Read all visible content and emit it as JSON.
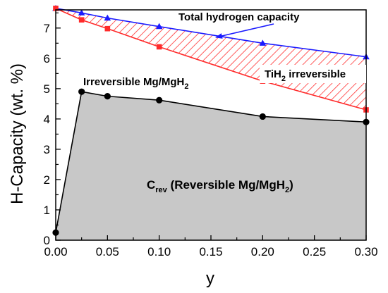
{
  "chart_data": {
    "type": "line",
    "title": "",
    "xlabel": "y",
    "ylabel": "H-Capacity (wt. %)",
    "xlim": [
      0.0,
      0.3
    ],
    "ylim": [
      0,
      7.6
    ],
    "x_ticks": [
      "0.00",
      "0.05",
      "0.10",
      "0.15",
      "0.20",
      "0.25",
      "0.30"
    ],
    "y_ticks": [
      "0",
      "1",
      "2",
      "3",
      "4",
      "5",
      "6",
      "7"
    ],
    "grid": false,
    "legend": "none",
    "series": [
      {
        "color": "#1a1aff",
        "marker": "triangle",
        "x": [
          0.0,
          0.025,
          0.05,
          0.1,
          0.2,
          0.3
        ],
        "y": [
          7.65,
          7.5,
          7.33,
          7.05,
          6.5,
          6.05
        ]
      },
      {
        "color": "#ff2a2a",
        "marker": "square",
        "x": [
          0.0,
          0.025,
          0.05,
          0.1,
          0.2,
          0.3
        ],
        "y": [
          7.65,
          7.27,
          6.98,
          6.38,
          5.25,
          4.3
        ]
      },
      {
        "color": "#000000",
        "marker": "circle",
        "x": [
          0.0,
          0.025,
          0.05,
          0.1,
          0.2,
          0.3
        ],
        "y": [
          0.25,
          4.9,
          4.75,
          4.62,
          4.08,
          3.9
        ]
      }
    ],
    "annotations": {
      "total": "Total hydrogen capacity",
      "irreversible_a": "Irreversible Mg/MgH",
      "irreversible_sub": "2",
      "tih2_a": "TiH",
      "tih2_sub": "2",
      "tih2_b": " irreversible",
      "crev_a": "C",
      "crev_sub": "rev",
      "crev_b": " (Reversible Mg/MgH",
      "crev_sub2": "2",
      "crev_c": ")"
    },
    "colors": {
      "reversible_fill": "#c8c8c8",
      "hatch": "#ff3030"
    }
  }
}
